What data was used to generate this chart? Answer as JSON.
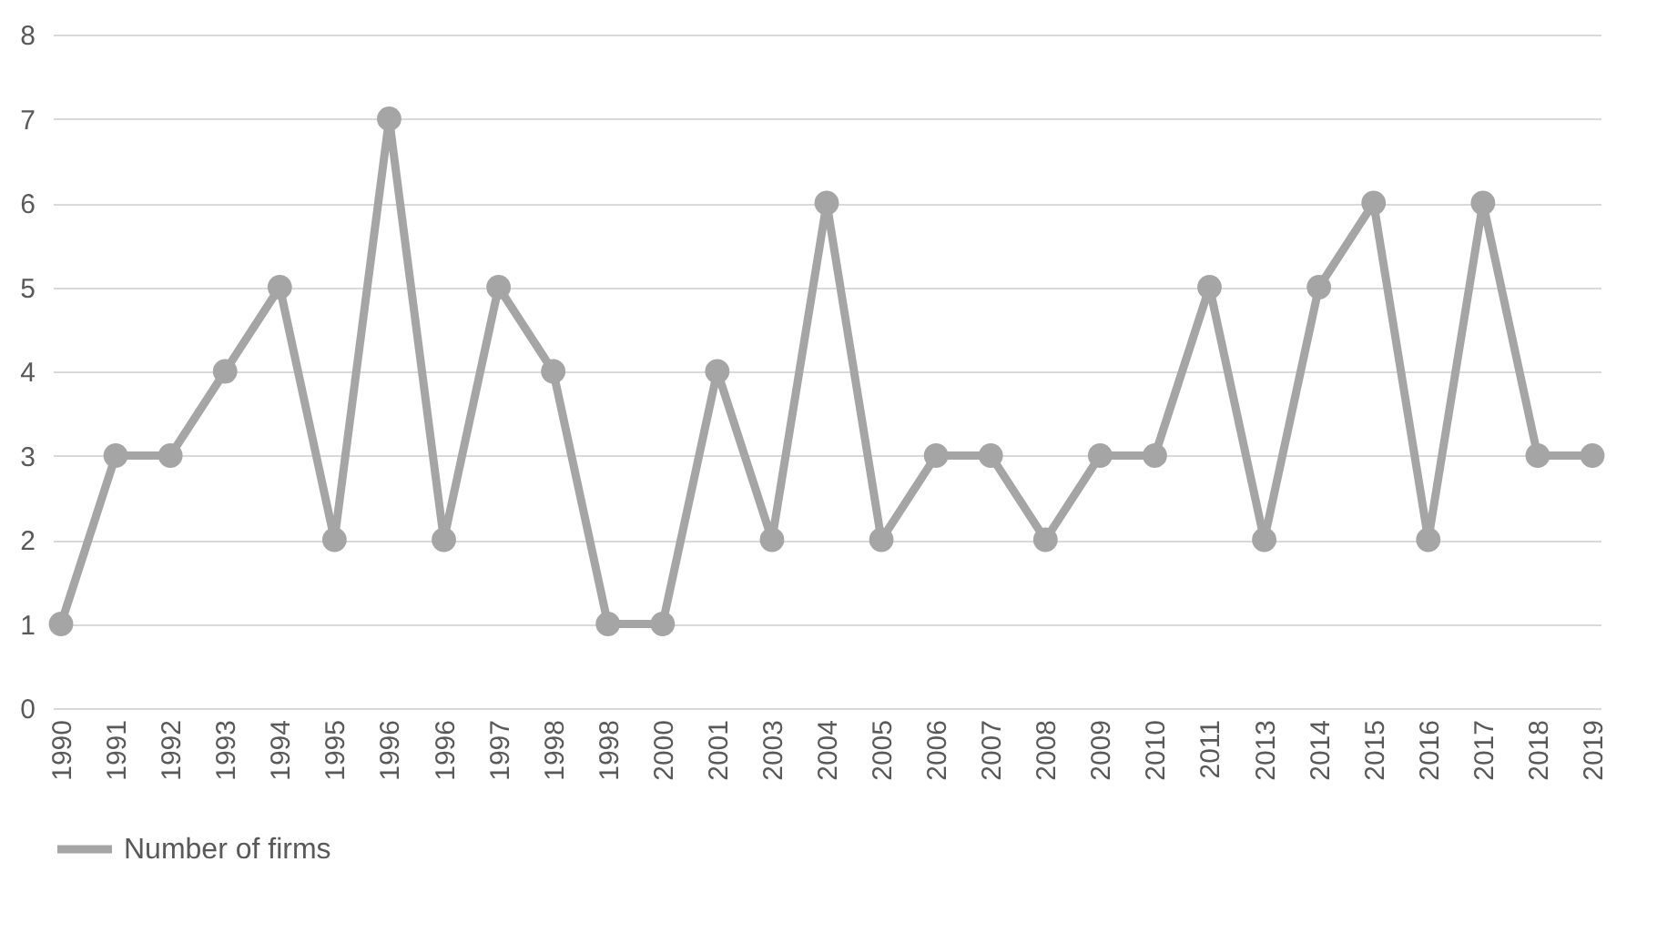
{
  "chart_data": {
    "type": "line",
    "categories": [
      "1990",
      "1991",
      "1992",
      "1993",
      "1994",
      "1995",
      "1996",
      "1996",
      "1997",
      "1998",
      "1998",
      "2000",
      "2001",
      "2003",
      "2004",
      "2005",
      "2006",
      "2007",
      "2008",
      "2009",
      "2010",
      "2011",
      "2013",
      "2014",
      "2015",
      "2016",
      "2017",
      "2018",
      "2019"
    ],
    "series": [
      {
        "name": "Number of firms",
        "color": "#a5a5a5",
        "values": [
          1,
          3,
          3,
          4,
          5,
          2,
          7,
          2,
          5,
          4,
          1,
          1,
          4,
          2,
          6,
          2,
          3,
          3,
          2,
          3,
          3,
          5,
          2,
          5,
          6,
          2,
          6,
          3,
          3
        ]
      }
    ],
    "ylim": [
      0,
      8
    ],
    "yticks": [
      0,
      1,
      2,
      3,
      4,
      5,
      6,
      7,
      8
    ],
    "grid": "y",
    "legend": "bottom",
    "marker": "circle"
  }
}
